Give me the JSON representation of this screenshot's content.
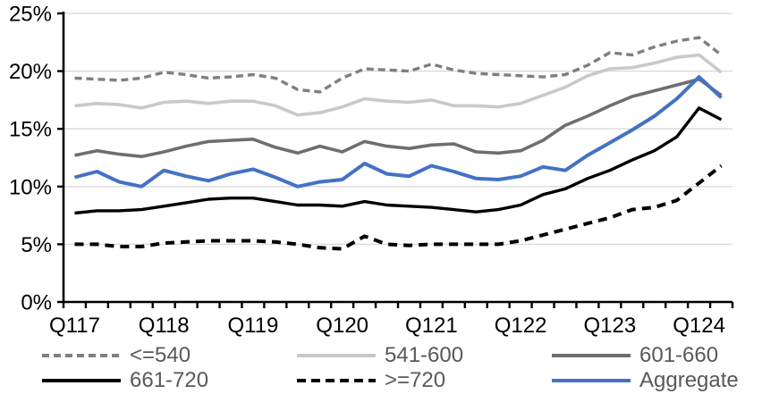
{
  "chart_data": {
    "type": "line",
    "title": "",
    "xlabel": "",
    "ylabel": "",
    "ylim": [
      0,
      25
    ],
    "ytick_step": 5,
    "ytick_labels": [
      "0%",
      "5%",
      "10%",
      "15%",
      "20%",
      "25%"
    ],
    "grid": true,
    "legend_position": "bottom",
    "categories": [
      "Q117",
      "Q217",
      "Q317",
      "Q417",
      "Q118",
      "Q218",
      "Q318",
      "Q418",
      "Q119",
      "Q219",
      "Q319",
      "Q419",
      "Q120",
      "Q220",
      "Q320",
      "Q420",
      "Q121",
      "Q221",
      "Q321",
      "Q421",
      "Q122",
      "Q222",
      "Q322",
      "Q422",
      "Q123",
      "Q223",
      "Q323",
      "Q423",
      "Q124",
      "Q224"
    ],
    "x_axis_shown_labels": [
      "Q117",
      "Q118",
      "Q119",
      "Q120",
      "Q121",
      "Q122",
      "Q123",
      "Q124"
    ],
    "x_label_every": 4,
    "series": [
      {
        "name": "<=540",
        "style": {
          "color": "#7f7f7f",
          "dash": "dashed",
          "width": 3.4,
          "dasharray": "8 5"
        },
        "values": [
          19.4,
          19.3,
          19.2,
          19.4,
          19.9,
          19.7,
          19.4,
          19.5,
          19.7,
          19.4,
          18.4,
          18.2,
          19.4,
          20.2,
          20.1,
          20.0,
          20.6,
          20.1,
          19.8,
          19.7,
          19.6,
          19.5,
          19.7,
          20.5,
          21.6,
          21.4,
          22.1,
          22.6,
          22.9,
          21.4
        ]
      },
      {
        "name": "541-600",
        "style": {
          "color": "#c9c9c9",
          "dash": "solid",
          "width": 3.6,
          "dasharray": ""
        },
        "values": [
          17.0,
          17.2,
          17.1,
          16.8,
          17.3,
          17.4,
          17.2,
          17.4,
          17.4,
          17.0,
          16.2,
          16.4,
          16.9,
          17.6,
          17.4,
          17.3,
          17.5,
          17.0,
          17.0,
          16.9,
          17.2,
          17.9,
          18.6,
          19.6,
          20.2,
          20.3,
          20.7,
          21.2,
          21.4,
          19.9
        ]
      },
      {
        "name": "601-660",
        "style": {
          "color": "#6e6e6e",
          "dash": "solid",
          "width": 3.6,
          "dasharray": ""
        },
        "values": [
          12.7,
          13.1,
          12.8,
          12.6,
          13.0,
          13.5,
          13.9,
          14.0,
          14.1,
          13.4,
          12.9,
          13.5,
          13.0,
          13.9,
          13.5,
          13.3,
          13.6,
          13.7,
          13.0,
          12.9,
          13.1,
          14.0,
          15.3,
          16.1,
          17.0,
          17.8,
          18.3,
          18.8,
          19.3,
          17.9
        ]
      },
      {
        "name": "661-720",
        "style": {
          "color": "#000000",
          "dash": "solid",
          "width": 3.4,
          "dasharray": ""
        },
        "values": [
          7.7,
          7.9,
          7.9,
          8.0,
          8.3,
          8.6,
          8.9,
          9.0,
          9.0,
          8.7,
          8.4,
          8.4,
          8.3,
          8.7,
          8.4,
          8.3,
          8.2,
          8.0,
          7.8,
          8.0,
          8.4,
          9.3,
          9.8,
          10.7,
          11.4,
          12.3,
          13.1,
          14.3,
          16.8,
          15.8
        ]
      },
      {
        "name": ">=720",
        "style": {
          "color": "#000000",
          "dash": "dashed",
          "width": 4.0,
          "dasharray": "10 7"
        },
        "values": [
          5.0,
          5.0,
          4.8,
          4.8,
          5.1,
          5.2,
          5.3,
          5.3,
          5.3,
          5.2,
          5.0,
          4.7,
          4.6,
          5.7,
          5.0,
          4.9,
          5.0,
          5.0,
          5.0,
          5.0,
          5.3,
          5.8,
          6.3,
          6.8,
          7.3,
          8.0,
          8.2,
          8.8,
          10.3,
          11.8
        ]
      },
      {
        "name": "Aggregate",
        "style": {
          "color": "#4472c4",
          "dash": "solid",
          "width": 4.0,
          "dasharray": ""
        },
        "values": [
          10.8,
          11.3,
          10.4,
          10.0,
          11.4,
          10.9,
          10.5,
          11.1,
          11.5,
          10.8,
          10.0,
          10.4,
          10.6,
          12.0,
          11.1,
          10.9,
          11.8,
          11.3,
          10.7,
          10.6,
          10.9,
          11.7,
          11.4,
          12.7,
          13.8,
          14.9,
          16.1,
          17.6,
          19.5,
          17.7
        ]
      }
    ],
    "colors": {
      "gridline": "#d9d9d9",
      "axis": "#000000",
      "axis_text": "#000000",
      "legend_text": "#595959",
      "background": "#ffffff",
      "accent_blue": "#4472c4"
    }
  }
}
